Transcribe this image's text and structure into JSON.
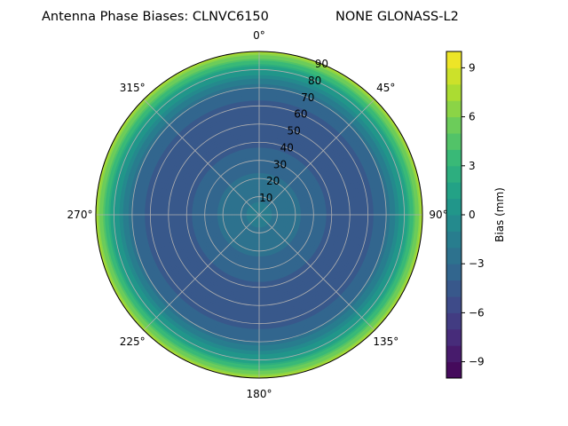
{
  "chart_data": {
    "type": "heatmap",
    "projection": "polar",
    "title_left": "Antenna Phase Biases: CLNVC6150",
    "title_right": "NONE GLONASS-L2",
    "theta_direction": "clockwise",
    "theta_zero": "top",
    "theta_ticks": [
      {
        "deg": 0,
        "label": "0°"
      },
      {
        "deg": 45,
        "label": "45°"
      },
      {
        "deg": 90,
        "label": "90°"
      },
      {
        "deg": 135,
        "label": "135°"
      },
      {
        "deg": 180,
        "label": "180°"
      },
      {
        "deg": 225,
        "label": "225°"
      },
      {
        "deg": 270,
        "label": "270°"
      },
      {
        "deg": 315,
        "label": "315°"
      }
    ],
    "r_range": [
      0,
      90
    ],
    "r_ticks": [
      10,
      20,
      30,
      40,
      50,
      60,
      70,
      80,
      90
    ],
    "r_tick_labels": [
      "10",
      "20",
      "30",
      "40",
      "50",
      "60",
      "70",
      "80",
      "90"
    ],
    "grid": true,
    "colormap": "viridis",
    "colorbar": {
      "label": "Bias (mm)",
      "range": [
        -10,
        10
      ],
      "levels": 20,
      "ticks": [
        -9,
        -6,
        -3,
        0,
        3,
        6,
        9
      ],
      "tick_labels": [
        "−9",
        "−6",
        "−3",
        "0",
        "3",
        "6",
        "9"
      ]
    },
    "bias_profile_by_elevation_ring": [
      {
        "r": 0,
        "bias": -1.5
      },
      {
        "r": 10,
        "bias": -2.2
      },
      {
        "r": 20,
        "bias": -2.8
      },
      {
        "r": 30,
        "bias": -3.5
      },
      {
        "r": 40,
        "bias": -4.2
      },
      {
        "r": 50,
        "bias": -4.6
      },
      {
        "r": 60,
        "bias": -4.4
      },
      {
        "r": 70,
        "bias": -3.0
      },
      {
        "r": 80,
        "bias": 1.0
      },
      {
        "r": 90,
        "bias": 7.5
      }
    ]
  }
}
